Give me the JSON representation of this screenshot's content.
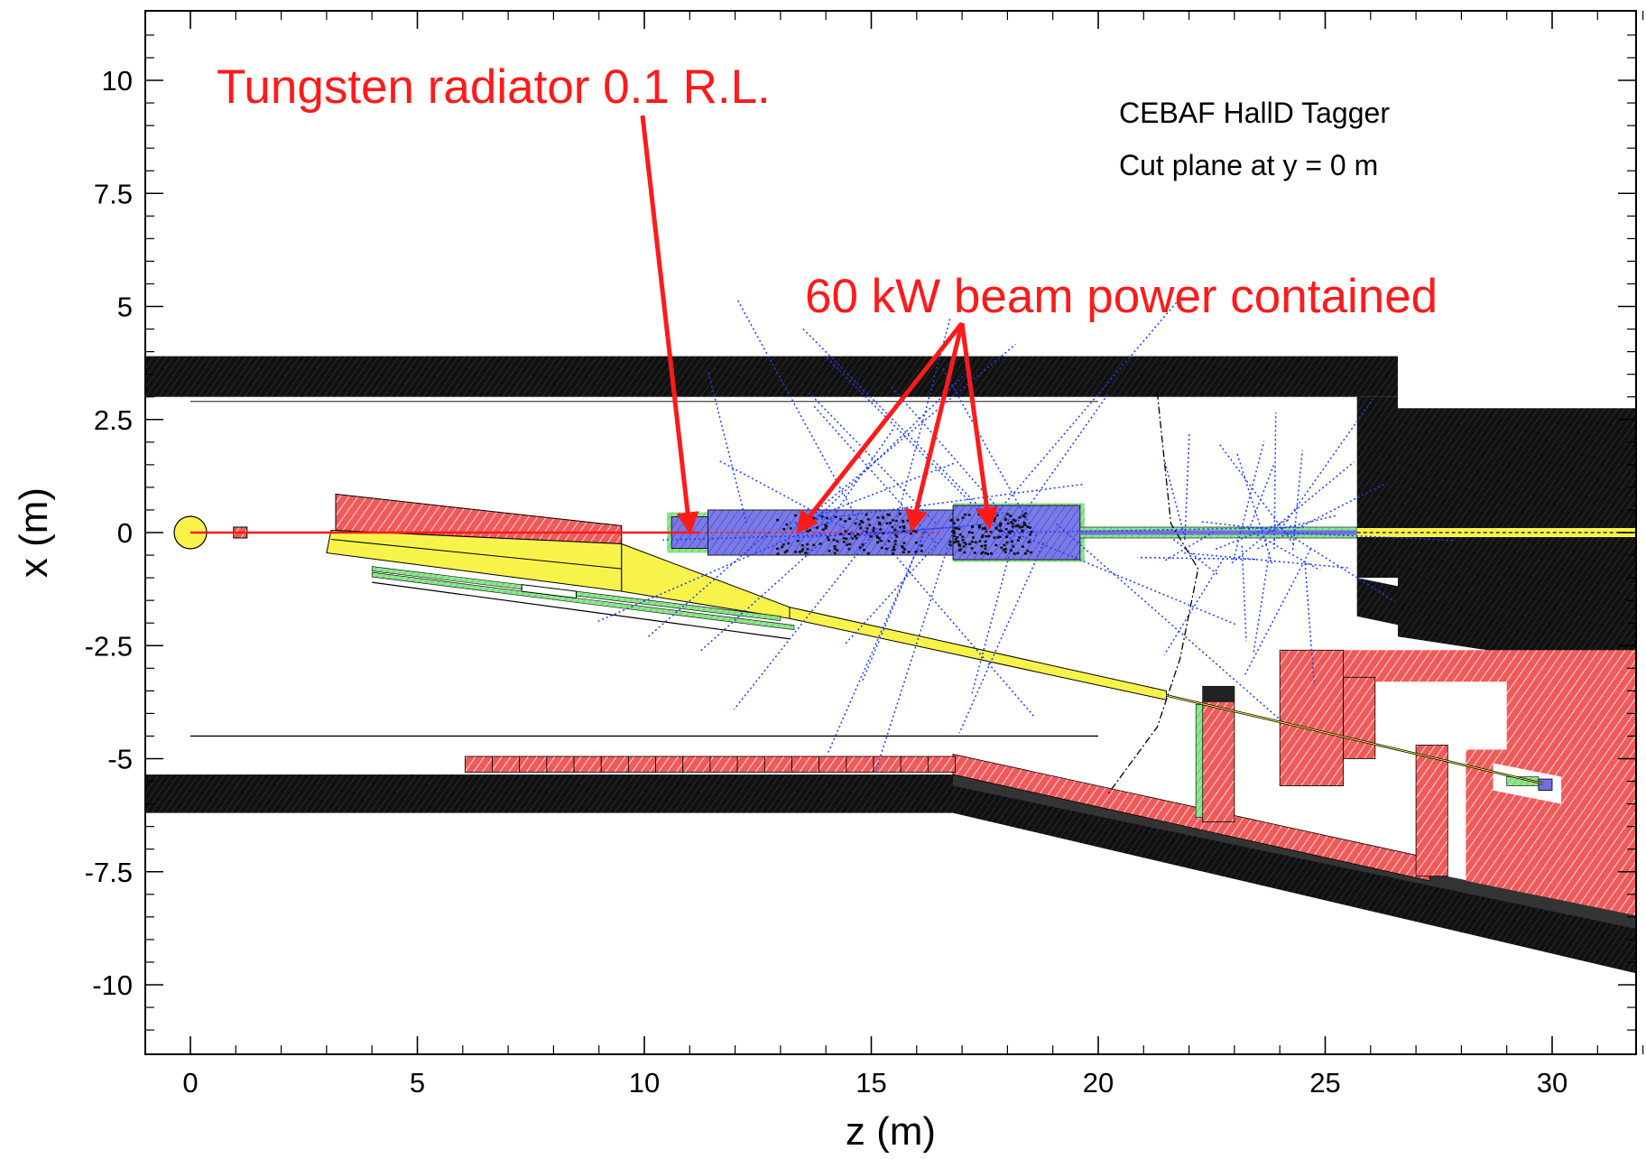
{
  "chart_data": {
    "type": "diagram",
    "header_lines": [
      "CEBAF HallD Tagger",
      "Cut plane at y = 0 m"
    ],
    "xlabel": "z (m)",
    "ylabel": "x (m)",
    "xlim": [
      -1,
      32
    ],
    "ylim": [
      -11.5,
      11.5
    ],
    "x_ticks": [
      0,
      5,
      10,
      15,
      20,
      25,
      30
    ],
    "x_tick_labels": [
      "0",
      "5",
      "10",
      "15",
      "20",
      "25",
      "30"
    ],
    "y_ticks": [
      10,
      7.5,
      5,
      2.5,
      0,
      -2.5,
      -5,
      -7.5,
      -10
    ],
    "y_tick_labels": [
      "10",
      "7.5",
      "5",
      "2.5",
      "0",
      "-2.5",
      "-5",
      "-7.5",
      "-10"
    ],
    "annotations": [
      {
        "text": "Tungsten radiator 0.1 R.L.",
        "color": "#ff1a1a"
      },
      {
        "text": "60 kW beam power contained",
        "color": "#ff1a1a"
      }
    ],
    "colors": {
      "shield": "#111111",
      "magnet": "#f25a5a",
      "magnet_hatch": "#ffffff",
      "vacuum_pipe": "#f7f34a",
      "dump_blocks": "#6f6fe0",
      "dump_frame": "#7de07d",
      "tracks": "#1a3cff",
      "beam": "#ff1a1a"
    }
  }
}
